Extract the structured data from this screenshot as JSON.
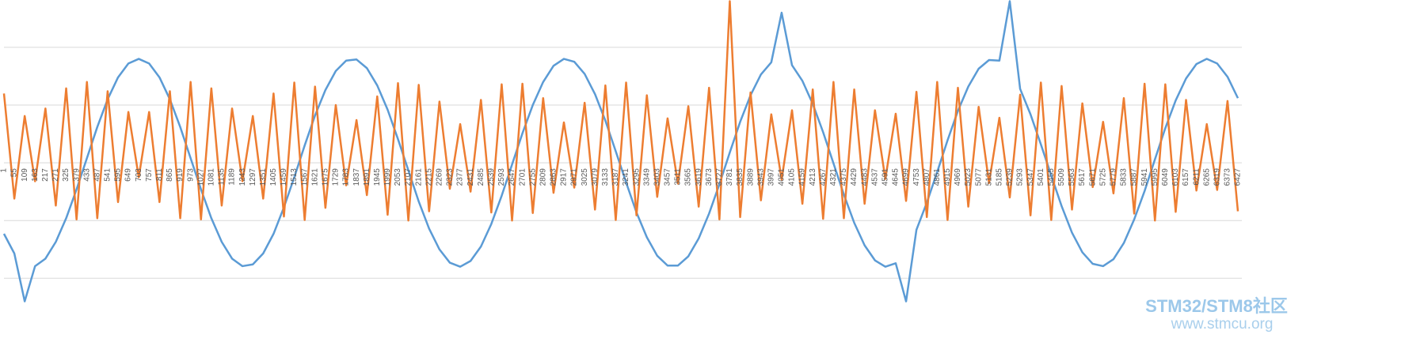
{
  "chart_data": {
    "type": "line",
    "x": [
      1,
      55,
      109,
      163,
      217,
      271,
      325,
      379,
      433,
      487,
      541,
      595,
      649,
      703,
      757,
      811,
      865,
      919,
      973,
      1027,
      1081,
      1135,
      1189,
      1243,
      1297,
      1351,
      1405,
      1459,
      1513,
      1567,
      1621,
      1675,
      1729,
      1783,
      1837,
      1891,
      1945,
      1999,
      2053,
      2107,
      2161,
      2215,
      2269,
      2323,
      2377,
      2431,
      2485,
      2539,
      2593,
      2647,
      2701,
      2755,
      2809,
      2863,
      2917,
      2971,
      3025,
      3079,
      3133,
      3187,
      3241,
      3295,
      3349,
      3403,
      3457,
      3511,
      3565,
      3619,
      3673,
      3727,
      3781,
      3835,
      3889,
      3943,
      3997,
      4051,
      4105,
      4159,
      4213,
      4267,
      4321,
      4375,
      4429,
      4483,
      4537,
      4591,
      4645,
      4699,
      4753,
      4807,
      4861,
      4915,
      4969,
      5023,
      5077,
      5131,
      5185,
      5239,
      5293,
      5347,
      5401,
      5455,
      5509,
      5563,
      5617,
      5671,
      5725,
      5779,
      5833,
      5887,
      5941,
      5995,
      6049,
      6103,
      6157,
      6211,
      6265,
      6319,
      6373,
      6427
    ],
    "xlim": [
      1,
      6427
    ],
    "ylim": [
      -2.42,
      2.82
    ],
    "grid_values": [
      -2,
      -1,
      0,
      1,
      2
    ],
    "series": [
      {
        "color": "#5b9bd5",
        "values": [
          -1.23,
          -1.57,
          -2.4,
          -1.79,
          -1.66,
          -1.37,
          -0.96,
          -0.46,
          0.08,
          0.62,
          1.1,
          1.48,
          1.72,
          1.8,
          1.72,
          1.48,
          1.1,
          0.62,
          0.08,
          -0.46,
          -0.96,
          -1.37,
          -1.66,
          -1.79,
          -1.76,
          -1.57,
          -1.23,
          -0.77,
          -0.25,
          0.3,
          0.82,
          1.26,
          1.59,
          1.77,
          1.79,
          1.64,
          1.34,
          0.92,
          0.41,
          -0.13,
          -0.67,
          -1.14,
          -1.5,
          -1.73,
          -1.8,
          -1.7,
          -1.45,
          -1.06,
          -0.57,
          -0.03,
          0.51,
          1.0,
          1.4,
          1.68,
          1.8,
          1.75,
          1.54,
          1.19,
          0.73,
          0.2,
          -0.34,
          -0.86,
          -1.29,
          -1.61,
          -1.78,
          -1.78,
          -1.62,
          -1.31,
          -0.88,
          -0.37,
          0.18,
          0.71,
          1.17,
          1.53,
          1.74,
          2.6,
          1.69,
          1.42,
          1.02,
          0.53,
          -0.01,
          -0.55,
          -1.04,
          -1.43,
          -1.69,
          -1.8,
          -1.74,
          -2.4,
          -1.16,
          -0.69,
          -0.16,
          0.39,
          0.9,
          1.32,
          1.63,
          1.78,
          1.77,
          2.8,
          1.28,
          0.84,
          0.32,
          -0.22,
          -0.75,
          -1.21,
          -1.55,
          -1.75,
          -1.79,
          -1.67,
          -1.39,
          -0.98,
          -0.49,
          0.06,
          0.6,
          1.08,
          1.46,
          1.71,
          1.8,
          1.72,
          1.49,
          1.12
        ]
      },
      {
        "color": "#ed7d31",
        "values": [
          1.2,
          -0.62,
          0.81,
          -0.32,
          0.94,
          -0.74,
          1.29,
          -0.98,
          1.4,
          -0.96,
          1.24,
          -0.68,
          0.88,
          -0.25,
          0.88,
          -0.68,
          1.24,
          -0.96,
          1.4,
          -0.98,
          1.29,
          -0.74,
          0.94,
          -0.32,
          0.81,
          -0.62,
          1.2,
          -0.93,
          1.39,
          -0.99,
          1.32,
          -0.78,
          1.0,
          -0.39,
          0.74,
          -0.56,
          1.15,
          -0.9,
          1.38,
          -1.0,
          1.35,
          -0.84,
          1.06,
          -0.45,
          0.67,
          -0.5,
          1.09,
          -0.86,
          1.36,
          -1.0,
          1.37,
          -0.87,
          1.12,
          -0.52,
          0.7,
          -0.43,
          1.04,
          -0.81,
          1.34,
          -0.99,
          1.39,
          -0.91,
          1.17,
          -0.59,
          0.77,
          -0.36,
          0.98,
          -0.76,
          1.3,
          -0.98,
          2.8,
          -0.94,
          1.22,
          -0.65,
          0.84,
          -0.29,
          0.91,
          -0.71,
          1.27,
          -0.97,
          1.4,
          -0.96,
          1.27,
          -0.71,
          0.91,
          -0.28,
          0.85,
          -0.66,
          1.23,
          -0.94,
          1.4,
          -0.99,
          1.3,
          -0.76,
          0.97,
          -0.35,
          0.78,
          -0.6,
          1.18,
          -0.91,
          1.39,
          -0.99,
          1.33,
          -0.81,
          1.03,
          -0.42,
          0.71,
          -0.53,
          1.12,
          -0.88,
          1.37,
          -1.0,
          1.36,
          -0.85,
          1.09,
          -0.48,
          0.67,
          -0.47,
          1.07,
          -0.84
        ]
      }
    ],
    "watermark": {
      "line1": "STM32/STM8社区",
      "line2": "www.stmcu.org"
    }
  }
}
